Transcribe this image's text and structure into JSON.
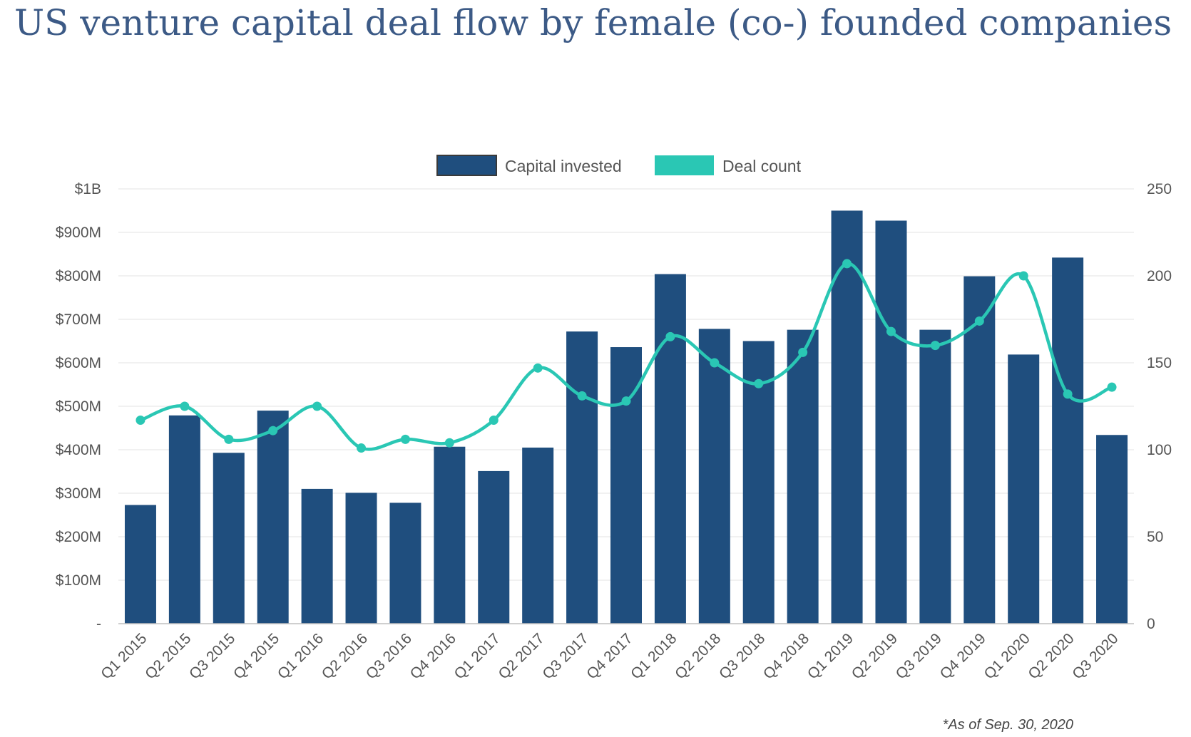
{
  "title": "US venture capital deal flow by female (co-) founded companies",
  "footnote": "*As of Sep. 30, 2020",
  "chart_data": {
    "type": "bar",
    "categories": [
      "Q1 2015",
      "Q2 2015",
      "Q3 2015",
      "Q4 2015",
      "Q1 2016",
      "Q2 2016",
      "Q3 2016",
      "Q4 2016",
      "Q1 2017",
      "Q2 2017",
      "Q3 2017",
      "Q4 2017",
      "Q1 2018",
      "Q2 2018",
      "Q3 2018",
      "Q4 2018",
      "Q1 2019",
      "Q2 2019",
      "Q3 2019",
      "Q4 2019",
      "Q1 2020",
      "Q2 2020",
      "Q3 2020"
    ],
    "series": [
      {
        "name": "Capital invested",
        "type": "bar",
        "axis": "left",
        "color": "#1f4e7e",
        "unit": "$M",
        "values": [
          273,
          479,
          393,
          490,
          310,
          301,
          278,
          407,
          351,
          405,
          672,
          636,
          804,
          678,
          650,
          676,
          950,
          927,
          676,
          799,
          619,
          842,
          434
        ]
      },
      {
        "name": "Deal count",
        "type": "line",
        "axis": "right",
        "color": "#2ac7b4",
        "values": [
          117,
          125,
          106,
          111,
          125,
          101,
          106,
          104,
          117,
          147,
          131,
          128,
          165,
          150,
          138,
          156,
          207,
          168,
          160,
          174,
          200,
          132,
          136
        ]
      }
    ],
    "left_axis": {
      "ylim": [
        0,
        1000
      ],
      "ticks": [
        0,
        100,
        200,
        300,
        400,
        500,
        600,
        700,
        800,
        900,
        1000
      ],
      "tick_labels": [
        "-",
        "$100M",
        "$200M",
        "$300M",
        "$400M",
        "$500M",
        "$600M",
        "$700M",
        "$800M",
        "$900M",
        "$1B"
      ]
    },
    "right_axis": {
      "ylim": [
        0,
        250
      ],
      "ticks": [
        0,
        50,
        100,
        150,
        200,
        250
      ],
      "tick_labels": [
        "0",
        "50",
        "100",
        "150",
        "200",
        "250"
      ]
    },
    "grid": true,
    "legend_position": "top-center"
  }
}
